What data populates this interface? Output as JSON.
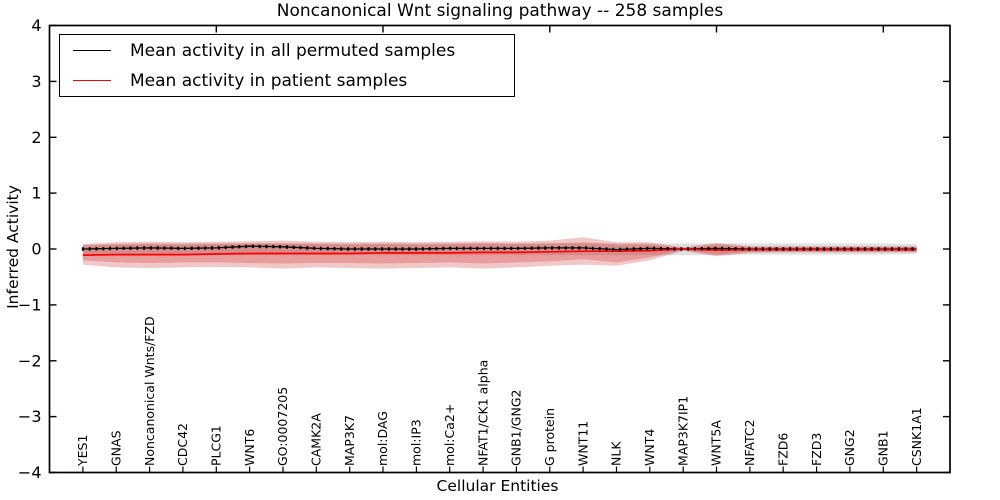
{
  "title": "Noncanonical Wnt signaling pathway -- 258 samples",
  "axes": {
    "xlabel": "Cellular Entities",
    "ylabel": "Inferred Activity"
  },
  "legend": {
    "items": [
      {
        "label": "Mean activity in all permuted samples",
        "color": "#000000"
      },
      {
        "label": "Mean activity in patient samples",
        "color": "#ff0000"
      }
    ]
  },
  "chart_data": {
    "type": "line",
    "title": "Noncanonical Wnt signaling pathway -- 258 samples",
    "xlabel": "Cellular Entities",
    "ylabel": "Inferred Activity",
    "xlim": [
      0,
      27
    ],
    "ylim": [
      -4,
      4
    ],
    "grid": false,
    "legend_position": "upper left",
    "yticks": [
      {
        "value": 4,
        "label": "4"
      },
      {
        "value": 3,
        "label": "3"
      },
      {
        "value": 2,
        "label": "2"
      },
      {
        "value": 1,
        "label": "1"
      },
      {
        "value": 0,
        "label": "0"
      },
      {
        "value": -1,
        "label": "−1"
      },
      {
        "value": -2,
        "label": "−2"
      },
      {
        "value": -3,
        "label": "−3"
      },
      {
        "value": -4,
        "label": "−4"
      }
    ],
    "xticks_major": [
      5,
      10,
      15,
      20,
      25
    ],
    "categories": [
      "YES1",
      "GNAS",
      "Noncanonical Wnts/FZD",
      "CDC42",
      "PLCG1",
      "WNT6",
      "GO:0007205",
      "CAMK2A",
      "MAP3K7",
      "mol:DAG",
      "mol:IP3",
      "mol:Ca2+",
      "NFAT1/CK1 alpha",
      "GNB1/GNG2",
      "G protein",
      "WNT11",
      "NLK",
      "WNT4",
      "MAP3K7IP1",
      "WNT5A",
      "NFATC2",
      "FZD6",
      "FZD3",
      "GNG2",
      "GNB1",
      "CSNK1A1"
    ],
    "x": [
      1,
      2,
      3,
      4,
      5,
      6,
      7,
      8,
      9,
      10,
      11,
      12,
      13,
      14,
      15,
      16,
      17,
      18,
      19,
      20,
      21,
      22,
      23,
      24,
      25,
      26
    ],
    "series": [
      {
        "name": "Mean activity in all permuted samples",
        "color": "#000000",
        "marker": "+",
        "values": [
          0.0,
          0.01,
          0.02,
          0.01,
          0.02,
          0.05,
          0.04,
          0.01,
          0.0,
          0.0,
          0.0,
          0.01,
          0.01,
          0.01,
          0.02,
          0.02,
          -0.01,
          0.01,
          0.0,
          0.01,
          0.0,
          0.0,
          0.0,
          0.0,
          0.0,
          0.0
        ]
      },
      {
        "name": "Mean activity in patient samples",
        "color": "#ff0000",
        "marker": "none",
        "values": [
          -0.11,
          -0.1,
          -0.1,
          -0.1,
          -0.09,
          -0.08,
          -0.08,
          -0.08,
          -0.08,
          -0.07,
          -0.07,
          -0.07,
          -0.06,
          -0.06,
          -0.05,
          -0.04,
          -0.04,
          -0.03,
          0.0,
          -0.02,
          -0.01,
          -0.01,
          -0.01,
          -0.01,
          -0.01,
          -0.01
        ]
      }
    ],
    "bands": [
      {
        "name": "permuted-samples-std-band",
        "color": "#000000",
        "opacity": 0.12,
        "upper": [
          0.08,
          0.09,
          0.1,
          0.1,
          0.1,
          0.1,
          0.1,
          0.1,
          0.1,
          0.1,
          0.1,
          0.1,
          0.1,
          0.1,
          0.1,
          0.1,
          0.1,
          0.1,
          0.1,
          0.1,
          0.1,
          0.1,
          0.1,
          0.1,
          0.1,
          0.09
        ],
        "lower": [
          -0.09,
          -0.1,
          -0.11,
          -0.11,
          -0.11,
          -0.11,
          -0.11,
          -0.11,
          -0.11,
          -0.11,
          -0.11,
          -0.11,
          -0.11,
          -0.11,
          -0.11,
          -0.11,
          -0.11,
          -0.11,
          -0.11,
          -0.11,
          -0.1,
          -0.1,
          -0.1,
          -0.1,
          -0.1,
          -0.09
        ]
      },
      {
        "name": "patient-samples-std-band-outer",
        "color": "#cc2020",
        "opacity": 0.25,
        "upper": [
          0.09,
          0.12,
          0.13,
          0.12,
          0.13,
          0.14,
          0.15,
          0.13,
          0.12,
          0.13,
          0.12,
          0.13,
          0.14,
          0.13,
          0.15,
          0.21,
          0.12,
          0.12,
          0.03,
          0.11,
          0.05,
          0.05,
          0.05,
          0.05,
          0.05,
          0.05
        ],
        "lower": [
          -0.28,
          -0.33,
          -0.34,
          -0.33,
          -0.32,
          -0.33,
          -0.35,
          -0.33,
          -0.34,
          -0.35,
          -0.34,
          -0.33,
          -0.35,
          -0.33,
          -0.3,
          -0.28,
          -0.3,
          -0.2,
          -0.03,
          -0.13,
          -0.07,
          -0.06,
          -0.06,
          -0.06,
          -0.06,
          -0.06
        ]
      },
      {
        "name": "patient-samples-std-band-inner",
        "color": "#cc2020",
        "opacity": 0.25,
        "upper": [
          0.06,
          0.08,
          0.09,
          0.08,
          0.09,
          0.1,
          0.1,
          0.09,
          0.08,
          0.09,
          0.08,
          0.09,
          0.1,
          0.09,
          0.1,
          0.12,
          0.08,
          0.08,
          0.02,
          0.08,
          0.04,
          0.04,
          0.04,
          0.04,
          0.04,
          0.04
        ],
        "lower": [
          -0.2,
          -0.24,
          -0.25,
          -0.24,
          -0.24,
          -0.25,
          -0.26,
          -0.25,
          -0.25,
          -0.26,
          -0.25,
          -0.24,
          -0.26,
          -0.24,
          -0.22,
          -0.18,
          -0.24,
          -0.15,
          -0.02,
          -0.1,
          -0.05,
          -0.05,
          -0.05,
          -0.05,
          -0.05,
          -0.05
        ]
      }
    ]
  }
}
